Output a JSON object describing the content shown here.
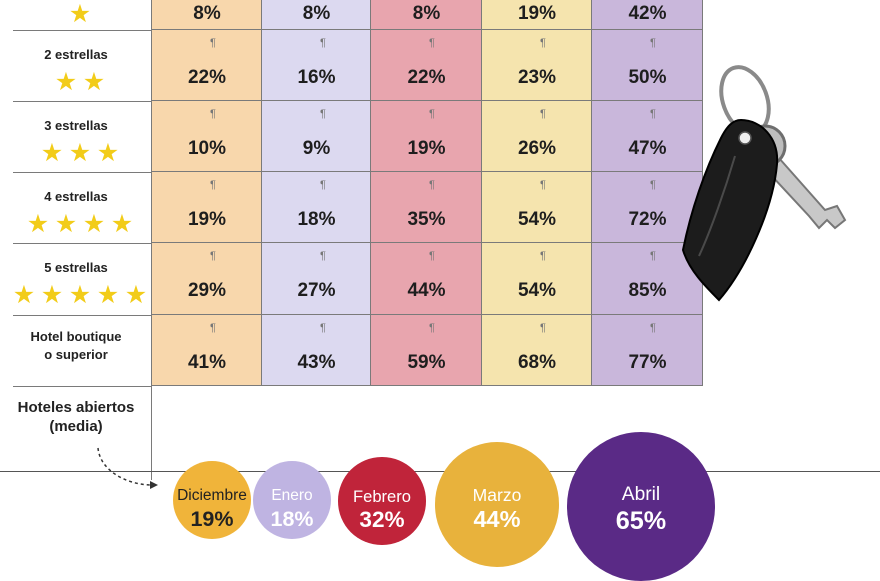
{
  "chart_data": {
    "type": "table",
    "columns": [
      {
        "color": "#f8d7ac"
      },
      {
        "color": "#dcd9f0"
      },
      {
        "color": "#e8a5ae"
      },
      {
        "color": "#f5e4ae"
      },
      {
        "color": "#c9b7db"
      }
    ],
    "rows": [
      {
        "label": "",
        "stars": 1,
        "values": [
          "8%",
          "8%",
          "8%",
          "19%",
          "42%"
        ]
      },
      {
        "label": "2 estrellas",
        "stars": 2,
        "values": [
          "22%",
          "16%",
          "22%",
          "23%",
          "50%"
        ]
      },
      {
        "label": "3 estrellas",
        "stars": 3,
        "values": [
          "10%",
          "9%",
          "19%",
          "26%",
          "47%"
        ]
      },
      {
        "label": "4 estrellas",
        "stars": 4,
        "values": [
          "19%",
          "18%",
          "35%",
          "54%",
          "72%"
        ]
      },
      {
        "label": "5 estrellas",
        "stars": 5,
        "values": [
          "29%",
          "27%",
          "44%",
          "54%",
          "85%"
        ]
      },
      {
        "label": "Hotel boutique o superior",
        "stars": 0,
        "values": [
          "41%",
          "43%",
          "59%",
          "68%",
          "77%"
        ]
      }
    ],
    "open_hotels": {
      "title": "Hoteles abiertos (media)",
      "months": [
        {
          "month": "Diciembre",
          "value": 19,
          "label": "19%",
          "color": "#f0b43a",
          "text_color": "#222222"
        },
        {
          "month": "Enero",
          "value": 18,
          "label": "18%",
          "color": "#bfb4e2",
          "text_color": "#ffffff"
        },
        {
          "month": "Febrero",
          "value": 32,
          "label": "32%",
          "color": "#c0243a",
          "text_color": "#ffffff"
        },
        {
          "month": "Marzo",
          "value": 44,
          "label": "44%",
          "color": "#e8b23c",
          "text_color": "#ffffff"
        },
        {
          "month": "Abril",
          "value": 65,
          "label": "65%",
          "color": "#5a2a86",
          "text_color": "#ffffff"
        }
      ]
    }
  },
  "pilcrow": "¶",
  "icons": {
    "star": "star-icon",
    "key": "hotel-key-icon"
  }
}
